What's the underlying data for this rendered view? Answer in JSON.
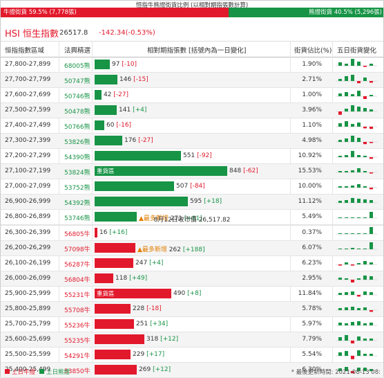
{
  "ratio": {
    "caption": "恒指牛熊證街貨比例 (以相對期指張數計算)",
    "bull_label": "牛證街貨 59.5% (7,778張)",
    "bear_label": "熊證街貨 40.5% (5,296張)",
    "bull_fraction": 0.595,
    "bull_color": "#e2192c",
    "bear_color": "#179446"
  },
  "index": {
    "name": "HSI 恒生指數",
    "value": "26517.8",
    "change": "-142.34(-0.53%)"
  },
  "columns": {
    "range": "恒指指數區域",
    "code": "法興精選",
    "contracts": "相對期指張數 [括號內為一日變化]",
    "pct": "街貨佔比(%)",
    "five_day": "五日街貨變化"
  },
  "close_line": "8月12日收市價 26,517.82",
  "bear_rows": [
    {
      "range": "27,800-27,899",
      "code": "68005熊",
      "value": 97,
      "display": "97",
      "change": "[-10]",
      "change_sign": "neg",
      "pct": "1.90%",
      "spark": [
        0.5,
        0.3,
        1,
        0.6,
        -0.2,
        0.3
      ],
      "tag": "",
      "badge": ""
    },
    {
      "range": "27,700-27,799",
      "code": "50747熊",
      "value": 146,
      "display": "146",
      "change": "[-15]",
      "change_sign": "neg",
      "pct": "2.71%",
      "spark": [
        0.3,
        0.7,
        0.9,
        -0.4,
        0.5,
        -0.3
      ],
      "tag": "",
      "badge": ""
    },
    {
      "range": "27,600-27,699",
      "code": "50746熊",
      "value": 42,
      "display": "42",
      "change": "[-27]",
      "change_sign": "neg",
      "pct": "1.00%",
      "spark": [
        0.4,
        0.6,
        0.3,
        0.8,
        -0.5,
        0.2
      ],
      "tag": "",
      "badge": ""
    },
    {
      "range": "27,500-27,599",
      "code": "50478熊",
      "value": 141,
      "display": "141",
      "change": "[+4]",
      "change_sign": "pos",
      "pct": "3.96%",
      "spark": [
        -0.6,
        0.4,
        0.9,
        0.7,
        0.5,
        0.3
      ],
      "tag": "",
      "badge": ""
    },
    {
      "range": "27,400-27,499",
      "code": "50766熊",
      "value": 60,
      "display": "60",
      "change": "[-16]",
      "change_sign": "neg",
      "pct": "1.10%",
      "spark": [
        0.5,
        0.8,
        0.4,
        0.6,
        -0.3,
        -0.4
      ],
      "tag": "",
      "badge": ""
    },
    {
      "range": "27,300-27,399",
      "code": "53826熊",
      "value": 176,
      "display": "176",
      "change": "[-27]",
      "change_sign": "neg",
      "pct": "4.98%",
      "spark": [
        0.3,
        0.5,
        0.9,
        0.6,
        -0.4,
        -0.2
      ],
      "tag": "",
      "badge": ""
    },
    {
      "range": "27,200-27,299",
      "code": "54390熊",
      "value": 551,
      "display": "551",
      "change": "[-92]",
      "change_sign": "neg",
      "pct": "10.92%",
      "spark": [
        0.2,
        0.3,
        0.9,
        0.3,
        0.2,
        -0.3
      ],
      "tag": "",
      "badge": ""
    },
    {
      "range": "27,100-27,199",
      "code": "53824熊",
      "value": 848,
      "display": "848",
      "change": "[-62]",
      "change_sign": "neg",
      "pct": "15.53%",
      "spark": [
        0.2,
        0.2,
        0.3,
        0.6,
        0.2,
        -0.2
      ],
      "tag": "重貨區",
      "badge": ""
    },
    {
      "range": "27,000-27,099",
      "code": "53752熊",
      "value": 507,
      "display": "507",
      "change": "[-84]",
      "change_sign": "neg",
      "pct": "10.00%",
      "spark": [
        0.2,
        0.2,
        0.3,
        0.5,
        0.2,
        -0.3
      ],
      "tag": "",
      "badge": ""
    },
    {
      "range": "26,900-26,999",
      "code": "54392熊",
      "value": 595,
      "display": "595",
      "change": "[+18]",
      "change_sign": "pos",
      "pct": "11.12%",
      "spark": [
        0.3,
        0.4,
        0.7,
        0.6,
        0.5,
        0.4
      ],
      "tag": "",
      "badge": ""
    },
    {
      "range": "26,800-26,899",
      "code": "53746熊",
      "value": 271,
      "display": "271",
      "change": "[+81]",
      "change_sign": "pos",
      "pct": "5.49%",
      "spark": [
        0.1,
        0.1,
        0.1,
        0.1,
        0.1,
        0.9
      ],
      "tag": "",
      "badge": "▲最多新增"
    }
  ],
  "bull_rows": [
    {
      "range": "26,300-26,399",
      "code": "56805牛",
      "value": 16,
      "display": "16",
      "change": "[+16]",
      "change_sign": "pos",
      "pct": "0.37%",
      "spark": [
        0,
        0,
        0,
        0,
        0,
        1
      ],
      "tag": "",
      "badge": ""
    },
    {
      "range": "26,200-26,299",
      "code": "57098牛",
      "value": 262,
      "display": "262",
      "change": "[+188]",
      "change_sign": "pos",
      "pct": "6.07%",
      "spark": [
        0.1,
        0.1,
        0.2,
        0.1,
        0.1,
        1
      ],
      "tag": "",
      "badge": "▲最多新增"
    },
    {
      "range": "26,100-26,199",
      "code": "56287牛",
      "value": 247,
      "display": "247",
      "change": "[+4]",
      "change_sign": "pos",
      "pct": "6.23%",
      "spark": [
        -0.2,
        0.3,
        -0.2,
        0.2,
        0.5,
        0.3
      ],
      "tag": "",
      "badge": ""
    },
    {
      "range": "26,000-26,099",
      "code": "56804牛",
      "value": 118,
      "display": "118",
      "change": "[+49]",
      "change_sign": "pos",
      "pct": "2.95%",
      "spark": [
        0.3,
        0.2,
        -0.5,
        0.2,
        0.6,
        0.5
      ],
      "tag": "",
      "badge": ""
    },
    {
      "range": "25,900-25,999",
      "code": "55231牛",
      "value": 490,
      "display": "490",
      "change": "[+8]",
      "change_sign": "pos",
      "pct": "11.84%",
      "spark": [
        0.3,
        0.4,
        0.5,
        -0.3,
        0.5,
        0.4
      ],
      "tag": "重貨區",
      "badge": ""
    },
    {
      "range": "25,800-25,899",
      "code": "55708牛",
      "value": 228,
      "display": "228",
      "change": "[-18]",
      "change_sign": "neg",
      "pct": "5.78%",
      "spark": [
        0.3,
        0.4,
        0.5,
        0.3,
        0.4,
        -0.3
      ],
      "tag": "",
      "badge": ""
    },
    {
      "range": "25,700-25,799",
      "code": "55236牛",
      "value": 251,
      "display": "251",
      "change": "[+34]",
      "change_sign": "pos",
      "pct": "5.97%",
      "spark": [
        0.4,
        0.3,
        0.5,
        0.6,
        0.3,
        0.4
      ],
      "tag": "",
      "badge": ""
    },
    {
      "range": "25,600-25,699",
      "code": "55235牛",
      "value": 318,
      "display": "318",
      "change": "[+12]",
      "change_sign": "pos",
      "pct": "7.79%",
      "spark": [
        0.5,
        0.8,
        -0.5,
        0.6,
        0.3,
        0.3
      ],
      "tag": "",
      "badge": ""
    },
    {
      "range": "25,500-25,599",
      "code": "54291牛",
      "value": 229,
      "display": "229",
      "change": "[+17]",
      "change_sign": "pos",
      "pct": "5.54%",
      "spark": [
        0.5,
        0.7,
        -0.6,
        0.8,
        0.3,
        0.3
      ],
      "tag": "",
      "badge": ""
    },
    {
      "range": "25,400-25,499",
      "code": "53850牛",
      "value": 269,
      "display": "269",
      "change": "[+12]",
      "change_sign": "pos",
      "pct": "6.30%",
      "spark": [
        0.4,
        0.6,
        -0.4,
        0.5,
        0.5,
        0.3
      ],
      "tag": "",
      "badge": ""
    }
  ],
  "legend": {
    "up_label": "上日牛證",
    "down_label": "上日熊證",
    "updated": "* 最後更新時間: 2021-08-13 08:"
  }
}
